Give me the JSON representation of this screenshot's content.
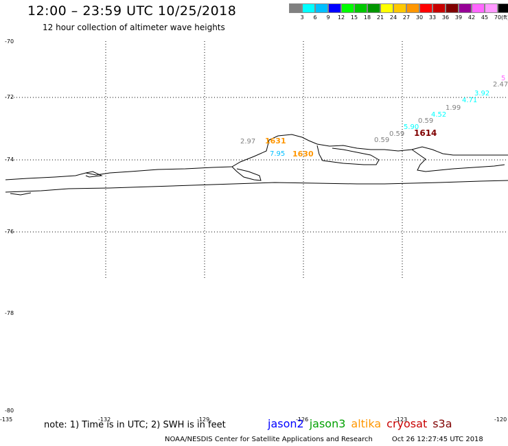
{
  "title": "12:00 – 23:59 UTC 10/25/2018",
  "subtitle": "12 hour collection of altimeter wave heights",
  "legend": {
    "colors": [
      "#808080",
      "#00ffff",
      "#00bfff",
      "#0000ff",
      "#00ff00",
      "#00c800",
      "#009600",
      "#ffff00",
      "#ffc800",
      "#ff9600",
      "#ff0000",
      "#c80000",
      "#800000",
      "#960096",
      "#ff66ff",
      "#ff99ff",
      "#000000"
    ],
    "labels": [
      "3",
      "6",
      "9",
      "12",
      "15",
      "18",
      "21",
      "24",
      "27",
      "30",
      "33",
      "36",
      "39",
      "42",
      "45",
      "70",
      "(ft)"
    ]
  },
  "lat_labels": [
    "-70",
    "-72",
    "-74",
    "-76",
    "-78",
    "-80"
  ],
  "lon_labels": [
    "-135",
    "-132",
    "-129",
    "-126",
    "-123",
    "-120"
  ],
  "observations": [
    {
      "text": "2.97",
      "color": "#808080"
    },
    {
      "text": "7.95",
      "color": "#00bfff"
    },
    {
      "text": "1631",
      "color": "#ff9600"
    },
    {
      "text": "1630",
      "color": "#ff9600"
    },
    {
      "text": "0.59",
      "color": "#808080"
    },
    {
      "text": "0.59",
      "color": "#808080"
    },
    {
      "text": "5.90",
      "color": "#00ffff"
    },
    {
      "text": "1614",
      "color": "#800000"
    },
    {
      "text": "0.59",
      "color": "#808080"
    },
    {
      "text": "4.52",
      "color": "#00ffff"
    },
    {
      "text": "1.99",
      "color": "#808080"
    },
    {
      "text": "4.71",
      "color": "#00ffff"
    },
    {
      "text": "3.92",
      "color": "#00ffff"
    },
    {
      "text": "2.47",
      "color": "#808080"
    },
    {
      "text": "5",
      "color": "#ff66ff"
    }
  ],
  "note": "note: 1) Time is in UTC; 2) SWH is in feet",
  "satellites": [
    {
      "name": "jason2",
      "color": "#0000ff"
    },
    {
      "name": "jason3",
      "color": "#00a000"
    },
    {
      "name": "altika",
      "color": "#ff9600"
    },
    {
      "name": "cryosat",
      "color": "#c80000"
    },
    {
      "name": "s3a",
      "color": "#800000"
    }
  ],
  "footer": {
    "credit": "NOAA/NESDIS Center for Satellite Applications and Research",
    "timestamp": "Oct 26 12:27:45 UTC 2018"
  }
}
